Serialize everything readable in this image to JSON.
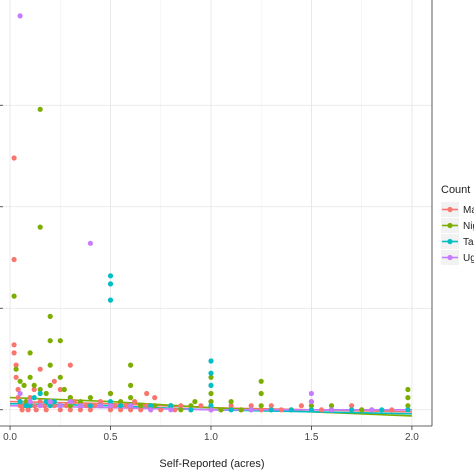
{
  "chart_data": {
    "type": "scatter",
    "xlabel": "Self-Reported (acres)",
    "ylabel": "",
    "xlim": [
      -0.05,
      2.1
    ],
    "ylim": [
      0,
      1
    ],
    "x_ticks": [
      "0.0",
      "0.5",
      "1.0",
      "1.5",
      "2.0"
    ],
    "x_tick_values": [
      0,
      0.5,
      1.0,
      1.5,
      2.0
    ],
    "y_gridlines": [
      0.04,
      0.29,
      0.54,
      0.79
    ],
    "grid": true,
    "legend": {
      "title": "Count",
      "placement": "right",
      "entries": [
        "Ma",
        "Nig",
        "Ta",
        "Ug"
      ]
    },
    "series": [
      {
        "name": "Ma",
        "color": "#F8766D",
        "points": [
          [
            0.02,
            0.66
          ],
          [
            0.02,
            0.41
          ],
          [
            0.02,
            0.2
          ],
          [
            0.02,
            0.18
          ],
          [
            0.03,
            0.15
          ],
          [
            0.03,
            0.12
          ],
          [
            0.04,
            0.09
          ],
          [
            0.04,
            0.07
          ],
          [
            0.05,
            0.06
          ],
          [
            0.05,
            0.05
          ],
          [
            0.06,
            0.04
          ],
          [
            0.07,
            0.05
          ],
          [
            0.08,
            0.06
          ],
          [
            0.09,
            0.04
          ],
          [
            0.1,
            0.05
          ],
          [
            0.1,
            0.07
          ],
          [
            0.12,
            0.05
          ],
          [
            0.13,
            0.04
          ],
          [
            0.15,
            0.06
          ],
          [
            0.15,
            0.14
          ],
          [
            0.17,
            0.05
          ],
          [
            0.18,
            0.04
          ],
          [
            0.2,
            0.06
          ],
          [
            0.22,
            0.05
          ],
          [
            0.25,
            0.04
          ],
          [
            0.25,
            0.09
          ],
          [
            0.28,
            0.05
          ],
          [
            0.3,
            0.04
          ],
          [
            0.3,
            0.07
          ],
          [
            0.32,
            0.06
          ],
          [
            0.35,
            0.04
          ],
          [
            0.38,
            0.05
          ],
          [
            0.4,
            0.04
          ],
          [
            0.42,
            0.05
          ],
          [
            0.45,
            0.06
          ],
          [
            0.5,
            0.04
          ],
          [
            0.5,
            0.08
          ],
          [
            0.52,
            0.05
          ],
          [
            0.55,
            0.04
          ],
          [
            0.58,
            0.05
          ],
          [
            0.6,
            0.04
          ],
          [
            0.62,
            0.06
          ],
          [
            0.65,
            0.04
          ],
          [
            0.68,
            0.05
          ],
          [
            0.7,
            0.04
          ],
          [
            0.72,
            0.07
          ],
          [
            0.75,
            0.04
          ],
          [
            0.8,
            0.05
          ],
          [
            0.82,
            0.04
          ],
          [
            0.85,
            0.05
          ],
          [
            0.9,
            0.04
          ],
          [
            0.95,
            0.05
          ],
          [
            1.0,
            0.04
          ],
          [
            1.0,
            0.06
          ],
          [
            1.05,
            0.04
          ],
          [
            1.1,
            0.05
          ],
          [
            1.15,
            0.04
          ],
          [
            1.2,
            0.05
          ],
          [
            1.25,
            0.04
          ],
          [
            1.3,
            0.05
          ],
          [
            1.35,
            0.04
          ],
          [
            1.4,
            0.04
          ],
          [
            1.45,
            0.05
          ],
          [
            1.5,
            0.04
          ],
          [
            1.5,
            0.06
          ],
          [
            1.55,
            0.04
          ],
          [
            1.6,
            0.04
          ],
          [
            1.7,
            0.05
          ],
          [
            1.75,
            0.04
          ],
          [
            1.8,
            0.04
          ],
          [
            1.9,
            0.04
          ],
          [
            1.98,
            0.04
          ],
          [
            0.68,
            0.08
          ],
          [
            0.3,
            0.15
          ],
          [
            0.22,
            0.11
          ],
          [
            0.12,
            0.09
          ]
        ]
      },
      {
        "name": "Nig",
        "color": "#7CAE00",
        "points": [
          [
            0.15,
            0.78
          ],
          [
            0.15,
            0.49
          ],
          [
            0.02,
            0.32
          ],
          [
            0.2,
            0.27
          ],
          [
            0.2,
            0.21
          ],
          [
            0.25,
            0.21
          ],
          [
            0.1,
            0.18
          ],
          [
            0.2,
            0.15
          ],
          [
            0.03,
            0.14
          ],
          [
            0.05,
            0.11
          ],
          [
            0.07,
            0.1
          ],
          [
            0.1,
            0.12
          ],
          [
            0.12,
            0.1
          ],
          [
            0.15,
            0.09
          ],
          [
            0.18,
            0.08
          ],
          [
            0.2,
            0.1
          ],
          [
            0.25,
            0.12
          ],
          [
            0.27,
            0.09
          ],
          [
            0.3,
            0.07
          ],
          [
            0.35,
            0.06
          ],
          [
            0.4,
            0.07
          ],
          [
            0.45,
            0.05
          ],
          [
            0.5,
            0.08
          ],
          [
            0.5,
            0.05
          ],
          [
            0.6,
            0.15
          ],
          [
            0.6,
            0.1
          ],
          [
            0.6,
            0.07
          ],
          [
            0.65,
            0.05
          ],
          [
            0.72,
            0.05
          ],
          [
            0.8,
            0.05
          ],
          [
            0.85,
            0.04
          ],
          [
            0.9,
            0.05
          ],
          [
            1.0,
            0.12
          ],
          [
            1.0,
            0.08
          ],
          [
            1.0,
            0.06
          ],
          [
            1.05,
            0.04
          ],
          [
            1.1,
            0.06
          ],
          [
            1.15,
            0.04
          ],
          [
            1.25,
            0.11
          ],
          [
            1.25,
            0.08
          ],
          [
            1.25,
            0.05
          ],
          [
            1.3,
            0.04
          ],
          [
            1.5,
            0.05
          ],
          [
            1.6,
            0.05
          ],
          [
            1.75,
            0.04
          ],
          [
            1.98,
            0.09
          ],
          [
            1.98,
            0.07
          ],
          [
            1.98,
            0.05
          ],
          [
            0.08,
            0.06
          ],
          [
            0.3,
            0.05
          ],
          [
            0.55,
            0.06
          ],
          [
            0.92,
            0.06
          ]
        ]
      },
      {
        "name": "Ta",
        "color": "#00BFC4",
        "points": [
          [
            0.5,
            0.37
          ],
          [
            0.5,
            0.35
          ],
          [
            0.5,
            0.31
          ],
          [
            1.0,
            0.16
          ],
          [
            1.0,
            0.13
          ],
          [
            1.0,
            0.1
          ],
          [
            0.12,
            0.07
          ],
          [
            0.15,
            0.08
          ],
          [
            0.18,
            0.06
          ],
          [
            0.2,
            0.05
          ],
          [
            0.22,
            0.06
          ],
          [
            0.25,
            0.05
          ],
          [
            0.3,
            0.06
          ],
          [
            0.35,
            0.05
          ],
          [
            0.4,
            0.05
          ],
          [
            0.45,
            0.05
          ],
          [
            0.5,
            0.06
          ],
          [
            0.55,
            0.05
          ],
          [
            0.6,
            0.05
          ],
          [
            0.7,
            0.05
          ],
          [
            0.8,
            0.05
          ],
          [
            0.9,
            0.04
          ],
          [
            1.0,
            0.05
          ],
          [
            1.1,
            0.04
          ],
          [
            1.2,
            0.04
          ],
          [
            1.3,
            0.04
          ],
          [
            1.4,
            0.04
          ],
          [
            1.5,
            0.04
          ],
          [
            1.6,
            0.04
          ],
          [
            1.7,
            0.04
          ],
          [
            1.85,
            0.04
          ],
          [
            1.98,
            0.04
          ],
          [
            0.05,
            0.06
          ],
          [
            0.08,
            0.05
          ],
          [
            0.1,
            0.05
          ]
        ]
      },
      {
        "name": "Ug",
        "color": "#C77CFF",
        "points": [
          [
            0.05,
            1.01
          ],
          [
            0.4,
            0.45
          ],
          [
            0.05,
            0.08
          ],
          [
            0.1,
            0.06
          ],
          [
            0.15,
            0.05
          ],
          [
            0.2,
            0.06
          ],
          [
            0.25,
            0.05
          ],
          [
            0.3,
            0.06
          ],
          [
            0.35,
            0.05
          ],
          [
            0.45,
            0.05
          ],
          [
            0.5,
            0.05
          ],
          [
            0.6,
            0.05
          ],
          [
            0.7,
            0.04
          ],
          [
            0.8,
            0.04
          ],
          [
            1.0,
            0.04
          ],
          [
            1.2,
            0.04
          ],
          [
            1.5,
            0.08
          ],
          [
            1.5,
            0.06
          ],
          [
            1.6,
            0.04
          ],
          [
            1.8,
            0.04
          ]
        ]
      }
    ],
    "trend_lines": [
      {
        "series": "Ma",
        "color": "#F8766D",
        "points": [
          [
            0.0,
            0.06
          ],
          [
            0.5,
            0.055
          ],
          [
            1.0,
            0.045
          ],
          [
            1.5,
            0.04
          ],
          [
            2.0,
            0.035
          ]
        ]
      },
      {
        "series": "Nig",
        "color": "#7CAE00",
        "points": [
          [
            0.0,
            0.07
          ],
          [
            0.5,
            0.06
          ],
          [
            1.0,
            0.045
          ],
          [
            1.5,
            0.035
          ],
          [
            2.0,
            0.025
          ]
        ]
      },
      {
        "series": "Ta",
        "color": "#00BFC4",
        "points": [
          [
            0.0,
            0.055
          ],
          [
            0.5,
            0.05
          ],
          [
            1.0,
            0.04
          ],
          [
            1.5,
            0.035
          ],
          [
            2.0,
            0.03
          ]
        ]
      },
      {
        "series": "Ug",
        "color": "#C77CFF",
        "points": [
          [
            0.0,
            0.05
          ],
          [
            0.5,
            0.045
          ],
          [
            1.0,
            0.04
          ],
          [
            1.5,
            0.04
          ],
          [
            2.0,
            0.04
          ]
        ]
      }
    ]
  }
}
